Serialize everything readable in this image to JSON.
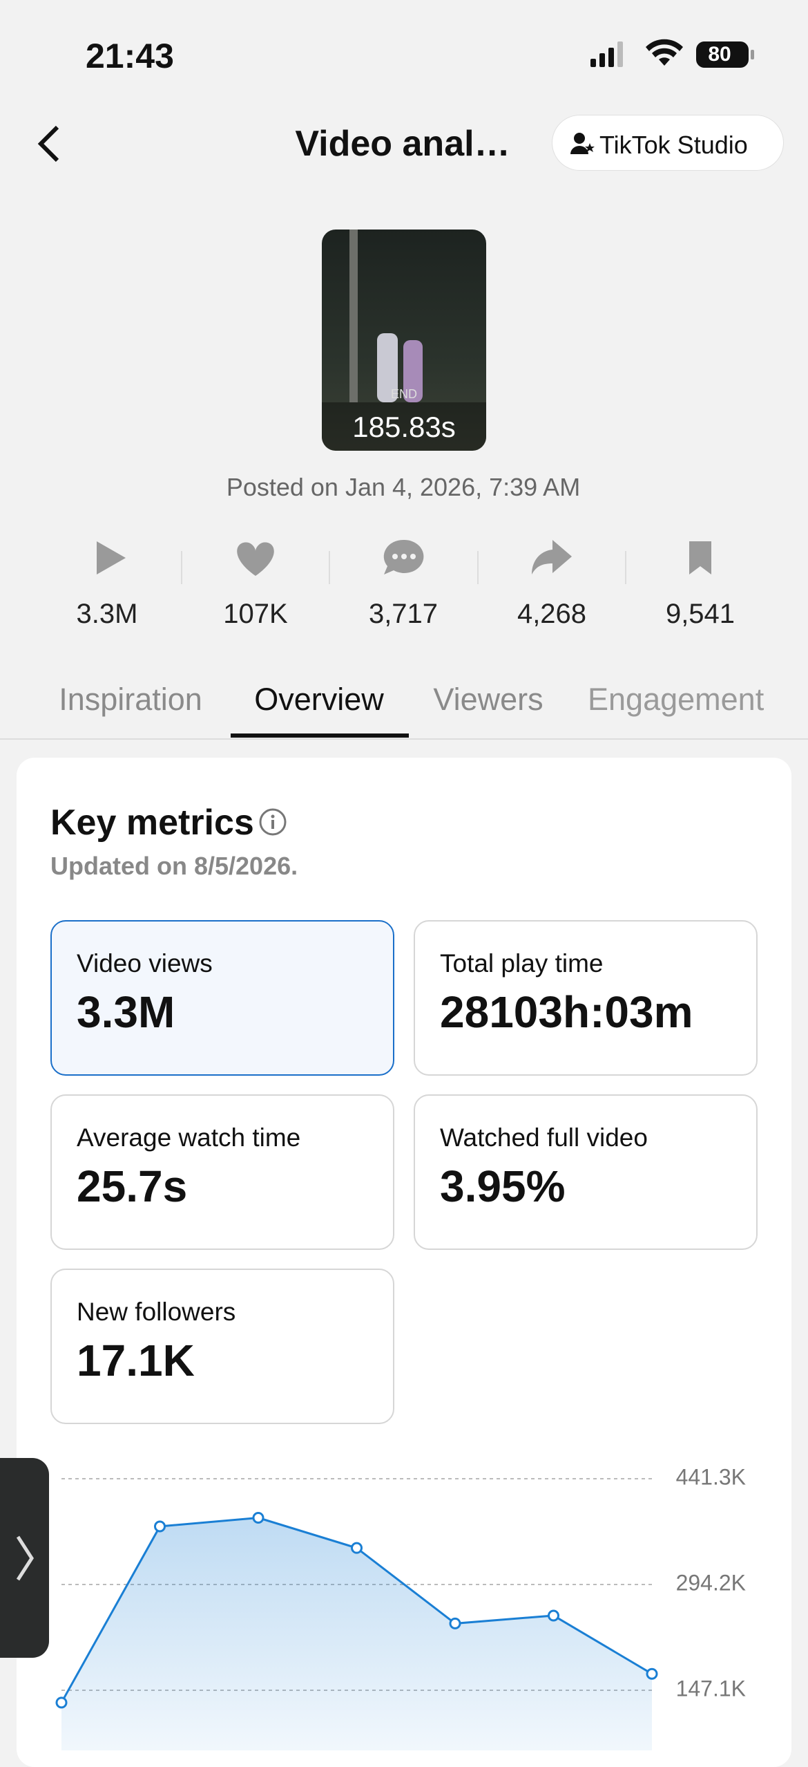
{
  "status_bar": {
    "time": "21:43",
    "battery": "80"
  },
  "header": {
    "title": "Video anal…",
    "button": "TikTok Studio"
  },
  "video": {
    "end_label": "END",
    "duration": "185.83s",
    "posted": "Posted on Jan 4, 2026, 7:39 AM"
  },
  "stats": [
    "3.3M",
    "107K",
    "3,717",
    "4,268",
    "9,541"
  ],
  "tabs": [
    "Inspiration",
    "Overview",
    "Viewers",
    "Engagement"
  ],
  "key_metrics": {
    "title": "Key metrics",
    "updated": "Updated on 8/5/2026.",
    "metrics": [
      {
        "label": "Video views",
        "value": "3.3M"
      },
      {
        "label": "Total play time",
        "value": "28103h:03m"
      },
      {
        "label": "Average watch time",
        "value": "25.7s"
      },
      {
        "label": "Watched full video",
        "value": "3.95%"
      },
      {
        "label": "New followers",
        "value": "17.1K"
      }
    ]
  },
  "chart_data": {
    "type": "area",
    "categories": [
      null,
      null,
      null,
      null,
      null,
      null,
      null
    ],
    "values": [
      130000,
      375000,
      387000,
      345000,
      240000,
      251000,
      170000
    ],
    "color": "#1a7fd4",
    "ylim": [
      63500,
      441300
    ],
    "yticks": [
      {
        "value": 147100,
        "label": "147.1K"
      },
      {
        "value": 294200,
        "label": "294.2K"
      },
      {
        "value": 441300,
        "label": "441.3K"
      }
    ],
    "grid": true
  }
}
